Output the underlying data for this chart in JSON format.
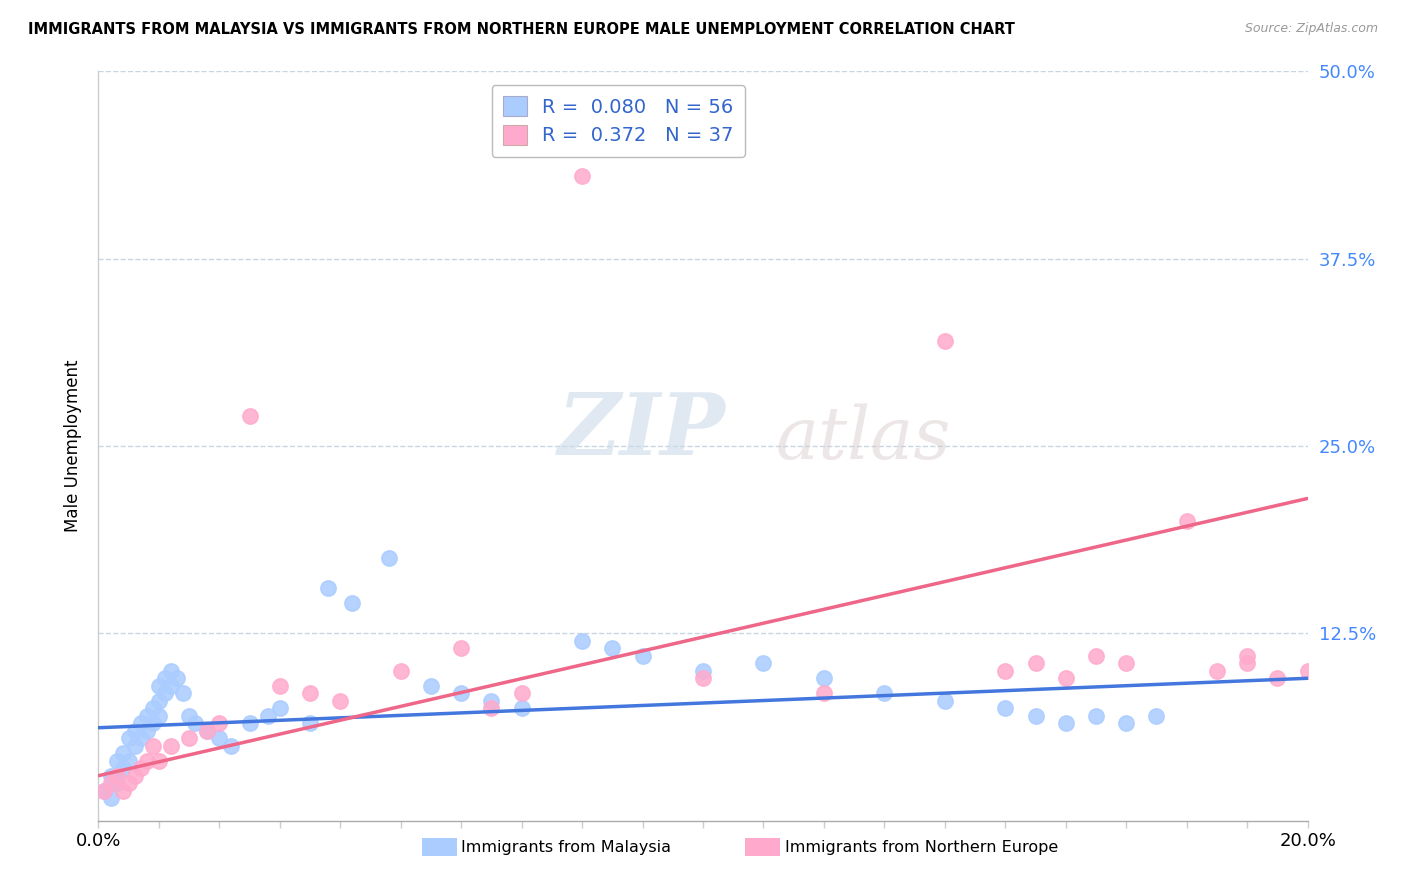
{
  "title": "IMMIGRANTS FROM MALAYSIA VS IMMIGRANTS FROM NORTHERN EUROPE MALE UNEMPLOYMENT CORRELATION CHART",
  "source": "Source: ZipAtlas.com",
  "ylabel": "Male Unemployment",
  "legend_label1": "Immigrants from Malaysia",
  "legend_label2": "Immigrants from Northern Europe",
  "R1": 0.08,
  "N1": 56,
  "R2": 0.372,
  "N2": 37,
  "xlim": [
    0.0,
    0.2
  ],
  "ylim": [
    0.0,
    0.5
  ],
  "yticks": [
    0.0,
    0.125,
    0.25,
    0.375,
    0.5
  ],
  "ytick_labels": [
    "",
    "12.5%",
    "25.0%",
    "37.5%",
    "50.0%"
  ],
  "color1": "#aaccff",
  "color2": "#ffaacc",
  "line_color1": "#4477dd",
  "line_color2": "#ee6688",
  "watermark_zip": "ZIP",
  "watermark_atlas": "atlas",
  "background": "#ffffff",
  "malaysia_x": [
    0.001,
    0.002,
    0.002,
    0.003,
    0.003,
    0.004,
    0.004,
    0.005,
    0.005,
    0.006,
    0.006,
    0.007,
    0.007,
    0.008,
    0.008,
    0.009,
    0.009,
    0.01,
    0.01,
    0.01,
    0.011,
    0.011,
    0.012,
    0.012,
    0.013,
    0.014,
    0.015,
    0.016,
    0.018,
    0.02,
    0.022,
    0.025,
    0.028,
    0.03,
    0.035,
    0.038,
    0.042,
    0.048,
    0.055,
    0.06,
    0.065,
    0.07,
    0.08,
    0.085,
    0.09,
    0.1,
    0.11,
    0.12,
    0.13,
    0.14,
    0.15,
    0.155,
    0.16,
    0.165,
    0.17,
    0.175
  ],
  "malaysia_y": [
    0.02,
    0.015,
    0.03,
    0.025,
    0.04,
    0.035,
    0.045,
    0.04,
    0.055,
    0.05,
    0.06,
    0.055,
    0.065,
    0.06,
    0.07,
    0.065,
    0.075,
    0.07,
    0.08,
    0.09,
    0.085,
    0.095,
    0.09,
    0.1,
    0.095,
    0.085,
    0.07,
    0.065,
    0.06,
    0.055,
    0.05,
    0.065,
    0.07,
    0.075,
    0.065,
    0.155,
    0.145,
    0.175,
    0.09,
    0.085,
    0.08,
    0.075,
    0.12,
    0.115,
    0.11,
    0.1,
    0.105,
    0.095,
    0.085,
    0.08,
    0.075,
    0.07,
    0.065,
    0.07,
    0.065,
    0.07
  ],
  "northern_x": [
    0.001,
    0.002,
    0.003,
    0.004,
    0.005,
    0.006,
    0.007,
    0.008,
    0.009,
    0.01,
    0.012,
    0.015,
    0.018,
    0.02,
    0.025,
    0.03,
    0.035,
    0.04,
    0.05,
    0.06,
    0.065,
    0.07,
    0.08,
    0.1,
    0.12,
    0.14,
    0.15,
    0.155,
    0.16,
    0.165,
    0.17,
    0.18,
    0.185,
    0.19,
    0.19,
    0.195,
    0.2
  ],
  "northern_y": [
    0.02,
    0.025,
    0.03,
    0.02,
    0.025,
    0.03,
    0.035,
    0.04,
    0.05,
    0.04,
    0.05,
    0.055,
    0.06,
    0.065,
    0.27,
    0.09,
    0.085,
    0.08,
    0.1,
    0.115,
    0.075,
    0.085,
    0.43,
    0.095,
    0.085,
    0.32,
    0.1,
    0.105,
    0.095,
    0.11,
    0.105,
    0.2,
    0.1,
    0.105,
    0.11,
    0.095,
    0.1
  ],
  "trend1_x0": 0.0,
  "trend1_x1": 0.2,
  "trend1_y0": 0.062,
  "trend1_y1": 0.095,
  "trend2_x0": 0.0,
  "trend2_x1": 0.2,
  "trend2_y0": 0.03,
  "trend2_y1": 0.215
}
